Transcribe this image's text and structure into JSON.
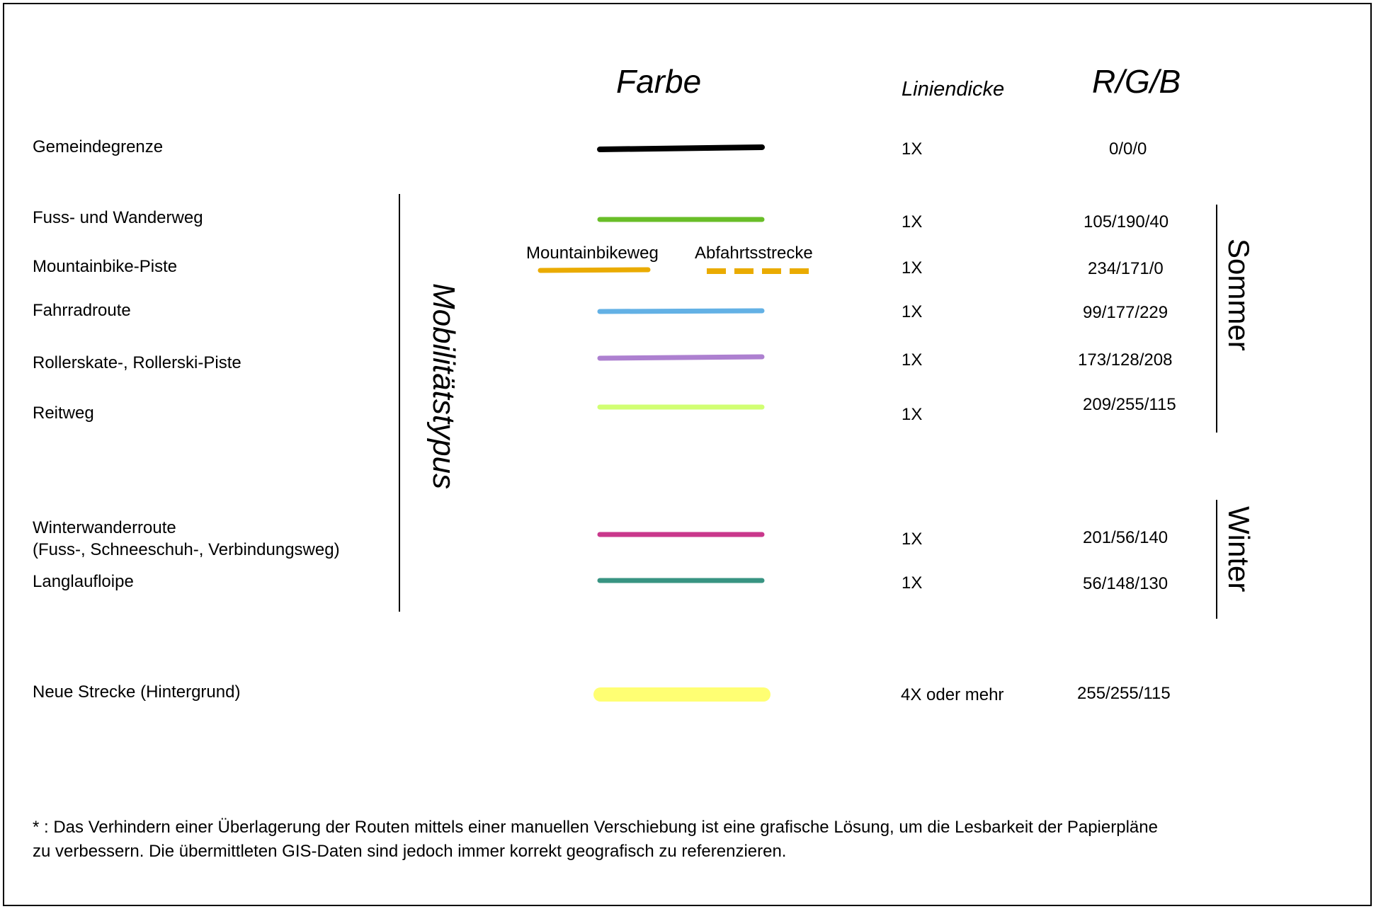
{
  "headers": {
    "farbe": "Farbe",
    "liniendicke": "Liniendicke",
    "rgb": "R/G/B"
  },
  "side_labels": {
    "mobilitaetstypus": "Mobilitätstypus",
    "sommer": "Sommer",
    "winter": "Winter"
  },
  "rows": [
    {
      "label": "Gemeindegrenze",
      "thickness": "1X",
      "rgb": "0/0/0",
      "color": "#000000"
    },
    {
      "label": "Fuss- und Wanderweg",
      "thickness": "1X",
      "rgb": "105/190/40",
      "color": "#69be28"
    },
    {
      "label": "Mountainbike-Piste",
      "thickness": "1X",
      "rgb": "234/171/0",
      "color": "#eaab00",
      "sub_labels": {
        "solid": "Mountainbikeweg",
        "dashed": "Abfahrtsstrecke"
      }
    },
    {
      "label": "Fahrradroute",
      "thickness": "1X",
      "rgb": "99/177/229",
      "color": "#63b1e5"
    },
    {
      "label": "Rollerskate-, Rollerski-Piste",
      "thickness": "1X",
      "rgb": "173/128/208",
      "color": "#ad80d0"
    },
    {
      "label": "Reitweg",
      "thickness": "1X",
      "rgb": "209/255/115",
      "color": "#d1ff73"
    },
    {
      "label": "Winterwanderroute",
      "label2": "(Fuss-, Schneeschuh-, Verbindungsweg)",
      "thickness": "1X",
      "rgb": "201/56/140",
      "color": "#c9388c"
    },
    {
      "label": "Langlaufloipe",
      "thickness": "1X",
      "rgb": "56/148/130",
      "color": "#389482"
    },
    {
      "label": "Neue Strecke (Hintergrund)",
      "thickness": "4X oder mehr",
      "rgb": "255/255/115",
      "color": "#ffff73"
    }
  ],
  "footnote": {
    "line1": "* : Das Verhindern einer Überlagerung der Routen mittels einer manuellen Verschiebung ist eine grafische Lösung, um die Lesbarkeit der Papierpläne",
    "line2": "zu verbessern. Die übermittleten GIS-Daten sind jedoch immer korrekt geografisch zu referenzieren."
  }
}
